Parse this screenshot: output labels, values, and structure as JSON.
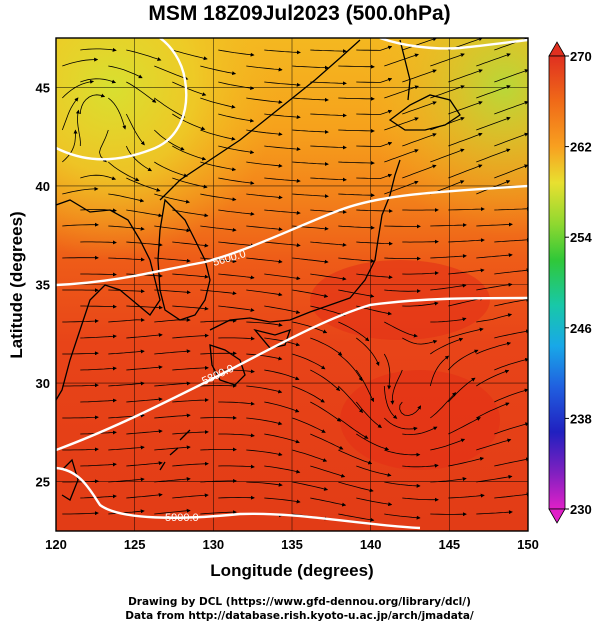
{
  "title": "MSM 18Z09Jul2023 (500.0hPa)",
  "x_axis": {
    "label": "Longitude (degrees)",
    "ticks": [
      "120",
      "125",
      "130",
      "135",
      "140",
      "145",
      "150"
    ],
    "range": [
      120,
      150
    ]
  },
  "y_axis": {
    "label": "Latitude  (degrees)",
    "ticks": [
      "25",
      "30",
      "35",
      "40",
      "45"
    ],
    "range": [
      22.5,
      47.5
    ]
  },
  "colorbar": {
    "tick_labels": [
      "270",
      "262",
      "254",
      "246",
      "238",
      "230"
    ],
    "min": 230,
    "max": 270,
    "colors_top_to_bottom": [
      "#e03020",
      "#f06a18",
      "#f8a020",
      "#e8e030",
      "#90d830",
      "#30c838",
      "#18c8a8",
      "#18a8e8",
      "#2060e0",
      "#2020c0",
      "#8020c0",
      "#e020c8"
    ]
  },
  "contours": [
    {
      "label": "5600.0"
    },
    {
      "label": "5800.0"
    },
    {
      "label": "5900.0"
    }
  ],
  "credits": [
    "Drawing by DCL (https://www.gfd-dennou.org/library/dcl/)",
    "Data from http://database.rish.kyoto-u.ac.jp/arch/jmadata/"
  ],
  "colors": {
    "warm": "#e83a18",
    "mid": "#f07a1c",
    "cool": "#f8c828",
    "contour": "#ffffff"
  }
}
